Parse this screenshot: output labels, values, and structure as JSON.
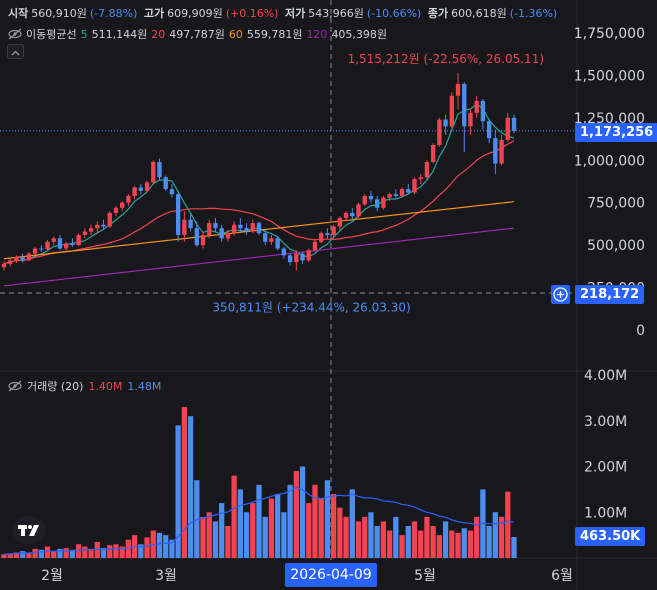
{
  "header": {
    "open_label": "시작",
    "open_value": "560,910원",
    "open_change": "(-7.88%)",
    "high_label": "고가",
    "high_value": "609,909원",
    "high_change": "(+0.16%)",
    "low_label": "저가",
    "low_value": "543,966원",
    "low_change": "(-10.66%)",
    "close_label": "종가",
    "close_value": "600,618원",
    "close_change": "(-1.36%)"
  },
  "ma_legend": {
    "title": "이동평균선",
    "items": [
      {
        "period": "5",
        "value": "511,144원",
        "color": "#26a69a"
      },
      {
        "period": "20",
        "value": "497,787원",
        "color": "#f04452"
      },
      {
        "period": "60",
        "value": "559,781원",
        "color": "#f7931a"
      },
      {
        "period": "120",
        "value": "405,398원",
        "color": "#9c27b0"
      }
    ]
  },
  "volume_legend": {
    "title": "거래량 (20)",
    "value1": "1.40M",
    "value2": "1.48M",
    "color1": "#f04452",
    "color2": "#4e8df0"
  },
  "price_axis_ticks": [
    "1,750,000",
    "1,500,000",
    "1,250,000",
    "1,000,000",
    "750,000",
    "500,000",
    "250,000",
    "0"
  ],
  "volume_axis_ticks": [
    "4.00M",
    "3.00M",
    "2.00M",
    "1.00M"
  ],
  "x_axis_ticks": [
    "2월",
    "3월",
    "5월",
    "6월"
  ],
  "badges": {
    "current_price": "1,173,256",
    "crosshair_price": "218,172",
    "volume_now": "463.50K",
    "crosshair_date": "2026-04-09"
  },
  "annotations": {
    "high": "1,515,212원 (-22.56%, 26.05.11)",
    "low": "350,811원 (+234.44%, 26.03.30)"
  },
  "colors": {
    "up": "#f04452",
    "down": "#4e8df0",
    "accent": "#2962ff",
    "background": "#17171c"
  },
  "chart_data": {
    "type": "candlestick",
    "price_ylim": [
      0,
      1750000
    ],
    "volume_ylim": [
      0,
      4000000
    ],
    "candles": [
      {
        "o": 370000,
        "h": 405000,
        "l": 350000,
        "c": 390000
      },
      {
        "o": 390000,
        "h": 420000,
        "l": 375000,
        "c": 410000
      },
      {
        "o": 410000,
        "h": 440000,
        "l": 395000,
        "c": 430000
      },
      {
        "o": 430000,
        "h": 450000,
        "l": 400000,
        "c": 410000
      },
      {
        "o": 410000,
        "h": 460000,
        "l": 405000,
        "c": 450000
      },
      {
        "o": 450000,
        "h": 490000,
        "l": 440000,
        "c": 480000
      },
      {
        "o": 480000,
        "h": 500000,
        "l": 460000,
        "c": 475000
      },
      {
        "o": 475000,
        "h": 530000,
        "l": 470000,
        "c": 520000
      },
      {
        "o": 520000,
        "h": 550000,
        "l": 500000,
        "c": 540000
      },
      {
        "o": 540000,
        "h": 560000,
        "l": 470000,
        "c": 480000
      },
      {
        "o": 480000,
        "h": 520000,
        "l": 470000,
        "c": 510000
      },
      {
        "o": 510000,
        "h": 540000,
        "l": 490000,
        "c": 500000
      },
      {
        "o": 500000,
        "h": 570000,
        "l": 495000,
        "c": 560000
      },
      {
        "o": 560000,
        "h": 600000,
        "l": 540000,
        "c": 580000
      },
      {
        "o": 580000,
        "h": 620000,
        "l": 560000,
        "c": 600000
      },
      {
        "o": 600000,
        "h": 640000,
        "l": 570000,
        "c": 620000
      },
      {
        "o": 620000,
        "h": 650000,
        "l": 590000,
        "c": 610000
      },
      {
        "o": 610000,
        "h": 700000,
        "l": 600000,
        "c": 690000
      },
      {
        "o": 690000,
        "h": 730000,
        "l": 670000,
        "c": 720000
      },
      {
        "o": 720000,
        "h": 760000,
        "l": 700000,
        "c": 750000
      },
      {
        "o": 750000,
        "h": 800000,
        "l": 730000,
        "c": 790000
      },
      {
        "o": 790000,
        "h": 850000,
        "l": 770000,
        "c": 840000
      },
      {
        "o": 840000,
        "h": 860000,
        "l": 800000,
        "c": 820000
      },
      {
        "o": 820000,
        "h": 880000,
        "l": 810000,
        "c": 870000
      },
      {
        "o": 870000,
        "h": 1000000,
        "l": 860000,
        "c": 990000
      },
      {
        "o": 990000,
        "h": 1010000,
        "l": 880000,
        "c": 900000
      },
      {
        "o": 900000,
        "h": 910000,
        "l": 820000,
        "c": 830000
      },
      {
        "o": 830000,
        "h": 860000,
        "l": 780000,
        "c": 800000
      },
      {
        "o": 800000,
        "h": 810000,
        "l": 520000,
        "c": 560000
      },
      {
        "o": 560000,
        "h": 700000,
        "l": 520000,
        "c": 650000
      },
      {
        "o": 650000,
        "h": 680000,
        "l": 580000,
        "c": 600000
      },
      {
        "o": 600000,
        "h": 640000,
        "l": 490000,
        "c": 500000
      },
      {
        "o": 500000,
        "h": 580000,
        "l": 480000,
        "c": 560000
      },
      {
        "o": 560000,
        "h": 650000,
        "l": 540000,
        "c": 630000
      },
      {
        "o": 630000,
        "h": 660000,
        "l": 580000,
        "c": 600000
      },
      {
        "o": 600000,
        "h": 620000,
        "l": 520000,
        "c": 540000
      },
      {
        "o": 540000,
        "h": 590000,
        "l": 520000,
        "c": 570000
      },
      {
        "o": 570000,
        "h": 640000,
        "l": 555000,
        "c": 620000
      },
      {
        "o": 620000,
        "h": 660000,
        "l": 580000,
        "c": 600000
      },
      {
        "o": 600000,
        "h": 630000,
        "l": 560000,
        "c": 580000
      },
      {
        "o": 580000,
        "h": 650000,
        "l": 570000,
        "c": 630000
      },
      {
        "o": 630000,
        "h": 640000,
        "l": 560000,
        "c": 570000
      },
      {
        "o": 570000,
        "h": 590000,
        "l": 500000,
        "c": 520000
      },
      {
        "o": 520000,
        "h": 560000,
        "l": 500000,
        "c": 540000
      },
      {
        "o": 540000,
        "h": 550000,
        "l": 470000,
        "c": 480000
      },
      {
        "o": 480000,
        "h": 490000,
        "l": 420000,
        "c": 440000
      },
      {
        "o": 440000,
        "h": 450000,
        "l": 380000,
        "c": 400000
      },
      {
        "o": 400000,
        "h": 470000,
        "l": 350811,
        "c": 450000
      },
      {
        "o": 450000,
        "h": 460000,
        "l": 390000,
        "c": 410000
      },
      {
        "o": 410000,
        "h": 480000,
        "l": 400000,
        "c": 470000
      },
      {
        "o": 470000,
        "h": 530000,
        "l": 460000,
        "c": 520000
      },
      {
        "o": 520000,
        "h": 580000,
        "l": 510000,
        "c": 570000
      },
      {
        "o": 570000,
        "h": 600000,
        "l": 540000,
        "c": 560000
      },
      {
        "o": 560000,
        "h": 620000,
        "l": 550000,
        "c": 610000
      },
      {
        "o": 610000,
        "h": 670000,
        "l": 590000,
        "c": 660000
      },
      {
        "o": 660000,
        "h": 700000,
        "l": 640000,
        "c": 690000
      },
      {
        "o": 690000,
        "h": 720000,
        "l": 650000,
        "c": 670000
      },
      {
        "o": 670000,
        "h": 750000,
        "l": 660000,
        "c": 740000
      },
      {
        "o": 740000,
        "h": 800000,
        "l": 730000,
        "c": 790000
      },
      {
        "o": 790000,
        "h": 820000,
        "l": 750000,
        "c": 770000
      },
      {
        "o": 770000,
        "h": 790000,
        "l": 700000,
        "c": 720000
      },
      {
        "o": 720000,
        "h": 790000,
        "l": 710000,
        "c": 780000
      },
      {
        "o": 780000,
        "h": 810000,
        "l": 760000,
        "c": 800000
      },
      {
        "o": 800000,
        "h": 830000,
        "l": 780000,
        "c": 790000
      },
      {
        "o": 790000,
        "h": 840000,
        "l": 780000,
        "c": 830000
      },
      {
        "o": 830000,
        "h": 860000,
        "l": 800000,
        "c": 810000
      },
      {
        "o": 810000,
        "h": 900000,
        "l": 800000,
        "c": 890000
      },
      {
        "o": 890000,
        "h": 920000,
        "l": 860000,
        "c": 900000
      },
      {
        "o": 900000,
        "h": 1000000,
        "l": 890000,
        "c": 990000
      },
      {
        "o": 990000,
        "h": 1100000,
        "l": 980000,
        "c": 1090000
      },
      {
        "o": 1090000,
        "h": 1250000,
        "l": 1080000,
        "c": 1240000
      },
      {
        "o": 1240000,
        "h": 1270000,
        "l": 1150000,
        "c": 1200000
      },
      {
        "o": 1200000,
        "h": 1400000,
        "l": 1190000,
        "c": 1380000
      },
      {
        "o": 1380000,
        "h": 1515212,
        "l": 1300000,
        "c": 1450000
      },
      {
        "o": 1450000,
        "h": 1460000,
        "l": 1050000,
        "c": 1200000
      },
      {
        "o": 1200000,
        "h": 1300000,
        "l": 1150000,
        "c": 1280000
      },
      {
        "o": 1280000,
        "h": 1380000,
        "l": 1250000,
        "c": 1350000
      },
      {
        "o": 1350000,
        "h": 1360000,
        "l": 1180000,
        "c": 1230000
      },
      {
        "o": 1230000,
        "h": 1240000,
        "l": 1100000,
        "c": 1130000
      },
      {
        "o": 1130000,
        "h": 1180000,
        "l": 920000,
        "c": 980000
      },
      {
        "o": 980000,
        "h": 1150000,
        "l": 970000,
        "c": 1120000
      },
      {
        "o": 1120000,
        "h": 1280000,
        "l": 1110000,
        "c": 1250000
      },
      {
        "o": 1250000,
        "h": 1270000,
        "l": 1160000,
        "c": 1173256
      }
    ],
    "volume": [
      0.08,
      0.1,
      0.12,
      0.15,
      0.1,
      0.2,
      0.18,
      0.25,
      0.15,
      0.2,
      0.22,
      0.18,
      0.3,
      0.25,
      0.2,
      0.35,
      0.22,
      0.28,
      0.3,
      0.25,
      0.4,
      0.5,
      0.3,
      0.45,
      0.6,
      0.55,
      0.5,
      0.4,
      2.9,
      3.3,
      3.1,
      1.7,
      0.9,
      1.0,
      0.8,
      1.2,
      0.7,
      1.8,
      1.5,
      1.0,
      1.2,
      1.6,
      0.9,
      1.3,
      1.4,
      1.0,
      1.6,
      1.9,
      2.0,
      1.2,
      1.6,
      1.3,
      1.7,
      1.4,
      1.1,
      0.9,
      1.5,
      0.8,
      0.9,
      1.0,
      0.7,
      0.8,
      0.6,
      0.9,
      0.5,
      0.7,
      0.8,
      0.6,
      0.9,
      0.7,
      0.5,
      0.8,
      0.6,
      0.55,
      0.65,
      0.6,
      0.9,
      1.5,
      0.7,
      1.0,
      0.9,
      1.45,
      0.46
    ],
    "lines": [
      {
        "name": "MA5",
        "color": "#26a69a"
      },
      {
        "name": "MA20",
        "color": "#f04452"
      },
      {
        "name": "MA60",
        "color": "#f7931a"
      },
      {
        "name": "MA120",
        "color": "#9c27b0"
      },
      {
        "name": "Volume MA20",
        "color": "#2962ff"
      }
    ],
    "current_price": 1173256,
    "crosshair_price": 218172,
    "high_marker": 1515212,
    "low_marker": 350811
  }
}
